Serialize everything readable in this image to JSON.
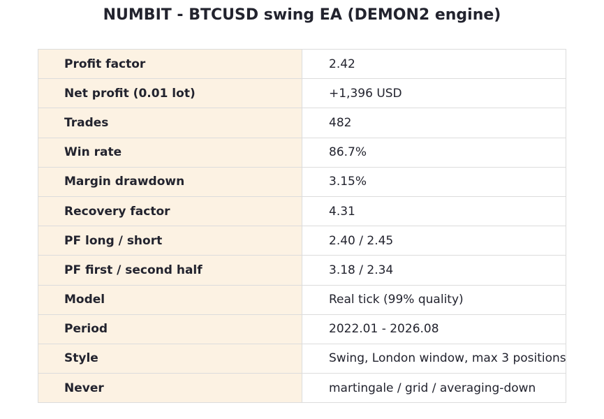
{
  "header": {
    "title": "NUMBIT - BTCUSD swing EA (DEMON2 engine)"
  },
  "table": {
    "rows": [
      [
        "Profit factor",
        "2.42"
      ],
      [
        "Net profit (0.01 lot)",
        "+1,396 USD"
      ],
      [
        "Trades",
        "482"
      ],
      [
        "Win rate",
        "86.7%"
      ],
      [
        "Margin drawdown",
        "3.15%"
      ],
      [
        "Recovery factor",
        "4.31"
      ],
      [
        "PF long / short",
        "2.40 / 2.45"
      ],
      [
        "PF first / second half",
        "3.18 / 2.34"
      ],
      [
        "Model",
        "Real tick (99% quality)"
      ],
      [
        "Period",
        "2022.01 - 2026.08"
      ],
      [
        "Style",
        "Swing, London window, max 3 positions"
      ],
      [
        "Never",
        "martingale / grid / averaging-down"
      ]
    ]
  }
}
